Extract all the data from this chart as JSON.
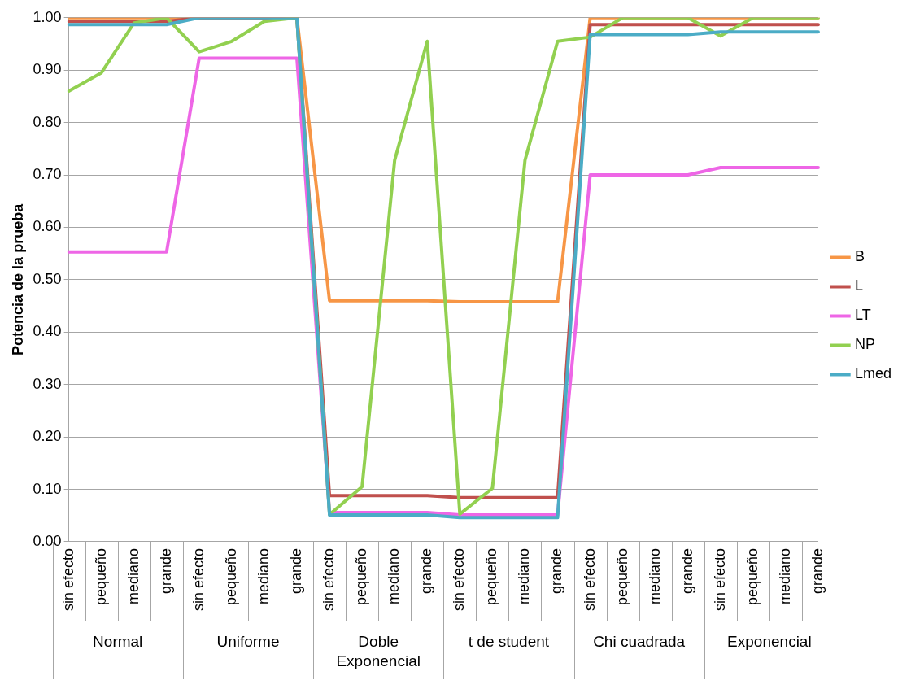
{
  "chart_data": {
    "type": "line",
    "ylabel": "Potencia de la prueba",
    "categories": [
      "sin efecto",
      "pequeño",
      "mediano",
      "grande",
      "sin efecto",
      "pequeño",
      "mediano",
      "grande",
      "sin efecto",
      "pequeño",
      "mediano",
      "grande",
      "sin efecto",
      "pequeño",
      "mediano",
      "grande",
      "sin efecto",
      "pequeño",
      "mediano",
      "grande",
      "sin efecto",
      "pequeño",
      "mediano",
      "grande"
    ],
    "annotations": [
      "Normal",
      "Uniforme",
      "Doble Exponencial",
      "t de student",
      "Chi cuadrada",
      "Exponencial"
    ],
    "series": [
      {
        "name": "B",
        "color": "#f79646",
        "values": [
          1,
          1,
          1,
          1,
          1,
          1,
          1,
          1,
          0.46,
          0.46,
          0.46,
          0.46,
          0.458,
          0.458,
          0.458,
          0.458,
          1,
          1,
          1,
          1,
          1,
          1,
          1,
          1
        ]
      },
      {
        "name": "L",
        "color": "#c0504d",
        "values": [
          0.993,
          0.993,
          0.993,
          0.993,
          1,
          1,
          1,
          1,
          0.088,
          0.088,
          0.088,
          0.088,
          0.084,
          0.084,
          0.084,
          0.084,
          0.987,
          0.987,
          0.987,
          0.987,
          0.987,
          0.987,
          0.987,
          0.987
        ]
      },
      {
        "name": "LT",
        "color": "#ee66e6",
        "values": [
          0.553,
          0.553,
          0.553,
          0.553,
          0.923,
          0.923,
          0.923,
          0.923,
          0.056,
          0.056,
          0.056,
          0.056,
          0.051,
          0.051,
          0.051,
          0.051,
          0.7,
          0.7,
          0.7,
          0.7,
          0.714,
          0.714,
          0.714,
          0.714
        ]
      },
      {
        "name": "NP",
        "color": "#92d050",
        "values": [
          0.86,
          0.895,
          0.99,
          1,
          0.935,
          0.955,
          0.993,
          1,
          0.052,
          0.105,
          0.728,
          0.955,
          0.053,
          0.102,
          0.728,
          0.955,
          0.963,
          1,
          1,
          1,
          0.965,
          1,
          1,
          1
        ]
      },
      {
        "name": "Lmed",
        "color": "#4bacc6",
        "values": [
          0.987,
          0.987,
          0.987,
          0.987,
          1,
          1,
          1,
          1,
          0.051,
          0.051,
          0.051,
          0.051,
          0.046,
          0.046,
          0.046,
          0.046,
          0.968,
          0.968,
          0.968,
          0.968,
          0.973,
          0.973,
          0.973,
          0.973
        ]
      }
    ],
    "ylim": [
      0,
      1
    ],
    "yticks": [
      {
        "value": 0,
        "label": "0.00"
      },
      {
        "value": 0.1,
        "label": "0.10"
      },
      {
        "value": 0.2,
        "label": "0.20"
      },
      {
        "value": 0.3,
        "label": "0.30"
      },
      {
        "value": 0.4,
        "label": "0.40"
      },
      {
        "value": 0.5,
        "label": "0.50"
      },
      {
        "value": 0.6,
        "label": "0.60"
      },
      {
        "value": 0.7,
        "label": "0.70"
      },
      {
        "value": 0.8,
        "label": "0.80"
      },
      {
        "value": 0.9,
        "label": "0.90"
      },
      {
        "value": 1,
        "label": "1.00"
      }
    ],
    "grid": "y",
    "legend": "right",
    "marker": "none",
    "line_style": "solid"
  }
}
